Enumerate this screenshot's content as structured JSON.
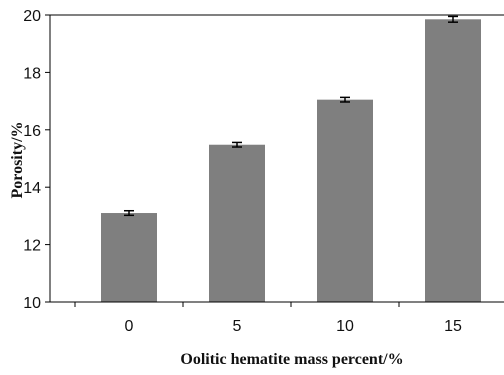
{
  "chart_data": {
    "type": "bar",
    "categories": [
      "0",
      "5",
      "10",
      "15"
    ],
    "values": [
      13.1,
      15.48,
      17.05,
      19.85
    ],
    "error_bars": [
      0.08,
      0.08,
      0.08,
      0.1
    ],
    "xlabel": "Oolitic hematite mass percent/%",
    "ylabel": "Porosity/%",
    "ylim": [
      10,
      20
    ],
    "yticks": [
      "10",
      "12",
      "14",
      "16",
      "18",
      "20"
    ],
    "grid": false,
    "bar_color": "#7f7f7f",
    "error_color": "#000000"
  }
}
